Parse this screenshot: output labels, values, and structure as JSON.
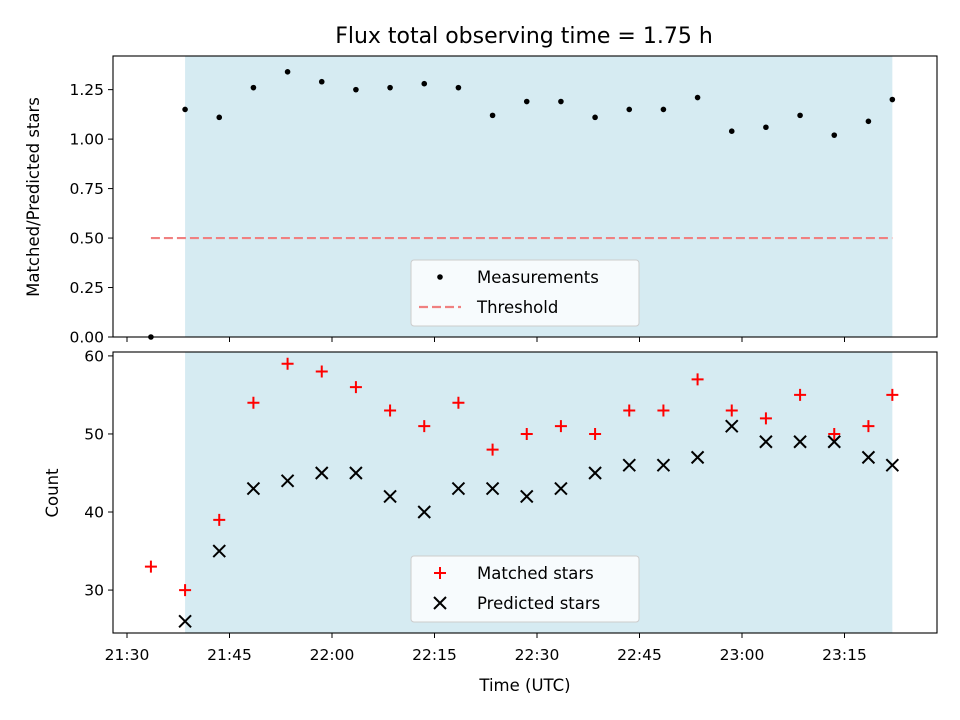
{
  "figure": {
    "title": "Flux total observing time = 1.75 h",
    "xlabel": "Time (UTC)",
    "x_ticks": [
      "21:30",
      "21:45",
      "22:00",
      "22:15",
      "22:30",
      "22:45",
      "23:00",
      "23:15"
    ],
    "observing_window": {
      "start": "21:38:30",
      "end": "23:22:00",
      "color": "#add8e6"
    }
  },
  "chart_data": [
    {
      "type": "scatter",
      "ylabel": "Matched/Predicted stars",
      "ylim": [
        0,
        1.42
      ],
      "y_ticks": [
        "0.00",
        "0.25",
        "0.50",
        "0.75",
        "1.00",
        "1.25"
      ],
      "threshold": {
        "value": 0.5,
        "x_range": [
          "21:33:30",
          "23:22:00"
        ],
        "color": "#f08080"
      },
      "legend": {
        "position": "lower center",
        "entries": [
          "Measurements",
          "Threshold"
        ]
      },
      "series": [
        {
          "name": "Measurements",
          "color": "#000000",
          "marker": "dot",
          "x": [
            "21:33:30",
            "21:38:30",
            "21:43:30",
            "21:48:30",
            "21:53:30",
            "21:58:30",
            "22:03:30",
            "22:08:30",
            "22:13:30",
            "22:18:30",
            "22:23:30",
            "22:28:30",
            "22:33:30",
            "22:38:30",
            "22:43:30",
            "22:48:30",
            "22:53:30",
            "22:58:30",
            "23:03:30",
            "23:08:30",
            "23:13:30",
            "23:18:30",
            "23:22:00"
          ],
          "y": [
            0.0,
            1.15,
            1.11,
            1.26,
            1.34,
            1.29,
            1.25,
            1.26,
            1.28,
            1.26,
            1.12,
            1.19,
            1.19,
            1.11,
            1.15,
            1.15,
            1.21,
            1.04,
            1.06,
            1.12,
            1.02,
            1.09,
            1.2
          ]
        }
      ]
    },
    {
      "type": "scatter",
      "ylabel": "Count",
      "ylim": [
        24.5,
        60.5
      ],
      "y_ticks": [
        "30",
        "40",
        "50",
        "60"
      ],
      "legend": {
        "position": "lower center",
        "entries": [
          "Matched stars",
          "Predicted stars"
        ]
      },
      "series": [
        {
          "name": "Matched stars",
          "color": "#ff0000",
          "marker": "plus",
          "x": [
            "21:33:30",
            "21:38:30",
            "21:43:30",
            "21:48:30",
            "21:53:30",
            "21:58:30",
            "22:03:30",
            "22:08:30",
            "22:13:30",
            "22:18:30",
            "22:23:30",
            "22:28:30",
            "22:33:30",
            "22:38:30",
            "22:43:30",
            "22:48:30",
            "22:53:30",
            "22:58:30",
            "23:03:30",
            "23:08:30",
            "23:13:30",
            "23:18:30",
            "23:22:00"
          ],
          "y": [
            33,
            30,
            39,
            54,
            59,
            58,
            56,
            53,
            51,
            54,
            48,
            50,
            51,
            50,
            53,
            53,
            57,
            53,
            52,
            55,
            50,
            51,
            55
          ]
        },
        {
          "name": "Predicted stars",
          "color": "#000000",
          "marker": "x",
          "x": [
            "21:38:30",
            "21:43:30",
            "21:48:30",
            "21:53:30",
            "21:58:30",
            "22:03:30",
            "22:08:30",
            "22:13:30",
            "22:18:30",
            "22:23:30",
            "22:28:30",
            "22:33:30",
            "22:38:30",
            "22:43:30",
            "22:48:30",
            "22:53:30",
            "22:58:30",
            "23:03:30",
            "23:08:30",
            "23:13:30",
            "23:18:30",
            "23:22:00"
          ],
          "y": [
            26,
            35,
            43,
            44,
            45,
            45,
            42,
            40,
            43,
            43,
            42,
            43,
            45,
            46,
            46,
            47,
            51,
            49,
            49,
            49,
            47,
            46
          ]
        }
      ]
    }
  ]
}
